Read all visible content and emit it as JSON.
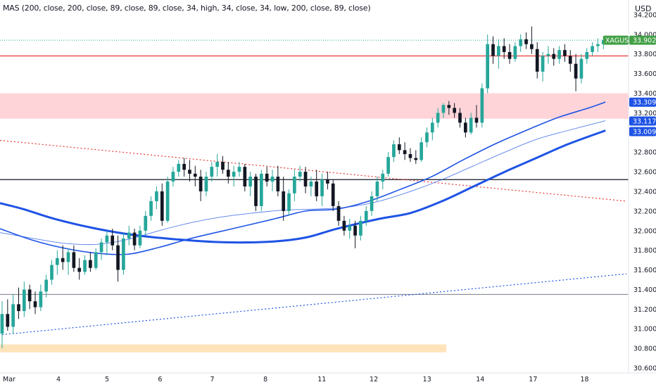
{
  "indicator_legend": "MAS (200, close, 200, close, 89, close, 89, close, 34, high, 34, close, 34, low, 200, close, 89, close)",
  "currency": "USD",
  "colors": {
    "up": "#26a69a",
    "down": "#131722",
    "resistance": "#e53935",
    "zone_red": "#ffcdd2",
    "zone_orange": "#ffe0b2",
    "ma": "#1e53e5",
    "badge_green": "#43a047",
    "badge_blue": "#1e53e5"
  },
  "chart_data": {
    "type": "candlestick",
    "symbol": "XAGUSD",
    "last_price": "33.902",
    "ylim": [
      30.55,
      34.35
    ],
    "y_ticks": [
      "34.200",
      "34.000",
      "33.800",
      "33.600",
      "33.400",
      "33.200",
      "33.000",
      "32.800",
      "32.600",
      "32.400",
      "32.200",
      "32.000",
      "31.800",
      "31.600",
      "31.400",
      "31.200",
      "31.000",
      "30.800",
      "30.600"
    ],
    "x_ticks": [
      "Mar",
      "4",
      "5",
      "6",
      "7",
      "8",
      "11",
      "12",
      "13",
      "14",
      "17",
      "18"
    ],
    "x_tick_values": [
      0,
      26.9,
      50.1,
      75.4,
      100.3,
      125.7,
      151.6,
      176.4,
      201.8,
      227.2,
      252.4,
      277.0
    ],
    "x_range": [
      -1,
      299
    ],
    "price_badges": [
      {
        "value": 33.309,
        "label": "33.309",
        "color": "blue"
      },
      {
        "value": 33.117,
        "label": "33.117",
        "color": "blue"
      },
      {
        "value": 33.009,
        "label": "33.009",
        "color": "blue"
      }
    ],
    "horizontal_lines": [
      {
        "name": "resistance-line",
        "value": 33.78,
        "color": "red"
      },
      {
        "name": "support-level-line",
        "value": 32.52,
        "color": "black"
      },
      {
        "name": "low-level-line",
        "value": 31.35,
        "color": "gray"
      }
    ],
    "zones": [
      {
        "name": "supply-zone",
        "from": 33.14,
        "to": 33.4,
        "x_from": -1,
        "x_to": 299,
        "color": "red"
      },
      {
        "name": "demand-zone",
        "from": 30.76,
        "to": 30.84,
        "x_from": -1,
        "x_to": 212,
        "color": "orange"
      }
    ],
    "trendlines": [
      {
        "name": "descending-trendline",
        "points": [
          [
            -1,
            32.92
          ],
          [
            298,
            32.3
          ]
        ],
        "color": "red",
        "style": "dotted"
      },
      {
        "name": "ascending-trendline",
        "points": [
          [
            0,
            30.94
          ],
          [
            298,
            31.56
          ]
        ],
        "color": "blue",
        "style": "dotted"
      }
    ],
    "moving_averages": [
      {
        "name": "ma-200-thick",
        "width": 3.0,
        "points": [
          [
            -1,
            32.28
          ],
          [
            10,
            32.22
          ],
          [
            25,
            32.12
          ],
          [
            45,
            32.02
          ],
          [
            65,
            31.95
          ],
          [
            90,
            31.9
          ],
          [
            110,
            31.88
          ],
          [
            130,
            31.89
          ],
          [
            145,
            31.93
          ],
          [
            160,
            32.02
          ],
          [
            180,
            32.12
          ],
          [
            195,
            32.18
          ],
          [
            210,
            32.3
          ],
          [
            225,
            32.45
          ],
          [
            240,
            32.6
          ],
          [
            255,
            32.74
          ],
          [
            270,
            32.88
          ],
          [
            288,
            33.02
          ]
        ]
      },
      {
        "name": "ma-89",
        "width": 1.6,
        "points": [
          [
            -1,
            32.02
          ],
          [
            15,
            31.9
          ],
          [
            30,
            31.82
          ],
          [
            45,
            31.77
          ],
          [
            60,
            31.76
          ],
          [
            75,
            31.83
          ],
          [
            90,
            31.92
          ],
          [
            110,
            32.02
          ],
          [
            130,
            32.12
          ],
          [
            145,
            32.2
          ],
          [
            160,
            32.22
          ],
          [
            175,
            32.3
          ],
          [
            190,
            32.42
          ],
          [
            205,
            32.55
          ],
          [
            220,
            32.72
          ],
          [
            235,
            32.88
          ],
          [
            250,
            33.02
          ],
          [
            265,
            33.15
          ],
          [
            280,
            33.25
          ],
          [
            288,
            33.31
          ]
        ]
      },
      {
        "name": "ma-89-thin",
        "width": 0.9,
        "points": [
          [
            -1,
            31.98
          ],
          [
            15,
            31.92
          ],
          [
            30,
            31.87
          ],
          [
            45,
            31.86
          ],
          [
            60,
            31.91
          ],
          [
            75,
            32.0
          ],
          [
            90,
            32.08
          ],
          [
            105,
            32.14
          ],
          [
            120,
            32.18
          ],
          [
            135,
            32.21
          ],
          [
            150,
            32.22
          ],
          [
            165,
            32.24
          ],
          [
            180,
            32.3
          ],
          [
            195,
            32.4
          ],
          [
            210,
            32.52
          ],
          [
            225,
            32.66
          ],
          [
            240,
            32.8
          ],
          [
            255,
            32.93
          ],
          [
            270,
            33.02
          ],
          [
            288,
            33.12
          ]
        ]
      }
    ],
    "candles": [
      {
        "o": 30.95,
        "h": 31.28,
        "l": 30.8,
        "c": 31.15
      },
      {
        "o": 31.15,
        "h": 31.3,
        "l": 30.98,
        "c": 31.02
      },
      {
        "o": 31.02,
        "h": 31.35,
        "l": 30.95,
        "c": 31.25
      },
      {
        "o": 31.25,
        "h": 31.42,
        "l": 31.1,
        "c": 31.18
      },
      {
        "o": 31.18,
        "h": 31.48,
        "l": 31.12,
        "c": 31.4
      },
      {
        "o": 31.4,
        "h": 31.45,
        "l": 31.2,
        "c": 31.28
      },
      {
        "o": 31.28,
        "h": 31.38,
        "l": 31.15,
        "c": 31.22
      },
      {
        "o": 31.22,
        "h": 31.45,
        "l": 31.18,
        "c": 31.38
      },
      {
        "o": 31.38,
        "h": 31.55,
        "l": 31.32,
        "c": 31.5
      },
      {
        "o": 31.5,
        "h": 31.7,
        "l": 31.45,
        "c": 31.65
      },
      {
        "o": 31.65,
        "h": 31.8,
        "l": 31.55,
        "c": 31.72
      },
      {
        "o": 31.72,
        "h": 31.85,
        "l": 31.6,
        "c": 31.68
      },
      {
        "o": 31.68,
        "h": 31.82,
        "l": 31.55,
        "c": 31.78
      },
      {
        "o": 31.78,
        "h": 31.85,
        "l": 31.58,
        "c": 31.62
      },
      {
        "o": 31.62,
        "h": 31.72,
        "l": 31.5,
        "c": 31.58
      },
      {
        "o": 31.58,
        "h": 31.75,
        "l": 31.55,
        "c": 31.7
      },
      {
        "o": 31.7,
        "h": 31.78,
        "l": 31.58,
        "c": 31.62
      },
      {
        "o": 31.62,
        "h": 31.82,
        "l": 31.6,
        "c": 31.78
      },
      {
        "o": 31.78,
        "h": 31.92,
        "l": 31.7,
        "c": 31.88
      },
      {
        "o": 31.88,
        "h": 32.0,
        "l": 31.75,
        "c": 31.95
      },
      {
        "o": 31.95,
        "h": 32.02,
        "l": 31.8,
        "c": 31.85
      },
      {
        "o": 31.85,
        "h": 31.95,
        "l": 31.48,
        "c": 31.6
      },
      {
        "o": 31.6,
        "h": 31.98,
        "l": 31.55,
        "c": 31.92
      },
      {
        "o": 31.92,
        "h": 32.05,
        "l": 31.85,
        "c": 31.98
      },
      {
        "o": 31.98,
        "h": 32.02,
        "l": 31.8,
        "c": 31.85
      },
      {
        "o": 31.85,
        "h": 32.05,
        "l": 31.82,
        "c": 32.0
      },
      {
        "o": 32.0,
        "h": 32.2,
        "l": 31.95,
        "c": 32.15
      },
      {
        "o": 32.15,
        "h": 32.35,
        "l": 32.1,
        "c": 32.3
      },
      {
        "o": 32.3,
        "h": 32.45,
        "l": 32.22,
        "c": 32.4
      },
      {
        "o": 32.4,
        "h": 32.48,
        "l": 32.05,
        "c": 32.1
      },
      {
        "o": 32.1,
        "h": 32.55,
        "l": 32.08,
        "c": 32.5
      },
      {
        "o": 32.5,
        "h": 32.65,
        "l": 32.45,
        "c": 32.6
      },
      {
        "o": 32.6,
        "h": 32.72,
        "l": 32.55,
        "c": 32.68
      },
      {
        "o": 32.68,
        "h": 32.74,
        "l": 32.55,
        "c": 32.62
      },
      {
        "o": 32.62,
        "h": 32.72,
        "l": 32.5,
        "c": 32.58
      },
      {
        "o": 32.58,
        "h": 32.66,
        "l": 32.45,
        "c": 32.55
      },
      {
        "o": 32.55,
        "h": 32.62,
        "l": 32.3,
        "c": 32.4
      },
      {
        "o": 32.4,
        "h": 32.6,
        "l": 32.35,
        "c": 32.55
      },
      {
        "o": 32.55,
        "h": 32.7,
        "l": 32.5,
        "c": 32.65
      },
      {
        "o": 32.65,
        "h": 32.78,
        "l": 32.55,
        "c": 32.7
      },
      {
        "o": 32.7,
        "h": 32.76,
        "l": 32.58,
        "c": 32.62
      },
      {
        "o": 32.62,
        "h": 32.7,
        "l": 32.48,
        "c": 32.55
      },
      {
        "o": 32.55,
        "h": 32.66,
        "l": 32.45,
        "c": 32.6
      },
      {
        "o": 32.6,
        "h": 32.7,
        "l": 32.55,
        "c": 32.65
      },
      {
        "o": 32.65,
        "h": 32.68,
        "l": 32.4,
        "c": 32.45
      },
      {
        "o": 32.45,
        "h": 32.6,
        "l": 32.35,
        "c": 32.55
      },
      {
        "o": 32.55,
        "h": 32.58,
        "l": 32.2,
        "c": 32.25
      },
      {
        "o": 32.25,
        "h": 32.62,
        "l": 32.2,
        "c": 32.58
      },
      {
        "o": 32.58,
        "h": 32.65,
        "l": 32.45,
        "c": 32.5
      },
      {
        "o": 32.5,
        "h": 32.62,
        "l": 32.4,
        "c": 32.55
      },
      {
        "o": 32.55,
        "h": 32.66,
        "l": 32.35,
        "c": 32.4
      },
      {
        "o": 32.4,
        "h": 32.55,
        "l": 32.1,
        "c": 32.2
      },
      {
        "o": 32.2,
        "h": 32.42,
        "l": 32.15,
        "c": 32.38
      },
      {
        "o": 32.38,
        "h": 32.62,
        "l": 32.3,
        "c": 32.55
      },
      {
        "o": 32.55,
        "h": 32.66,
        "l": 32.5,
        "c": 32.6
      },
      {
        "o": 32.6,
        "h": 32.65,
        "l": 32.38,
        "c": 32.45
      },
      {
        "o": 32.45,
        "h": 32.55,
        "l": 32.35,
        "c": 32.5
      },
      {
        "o": 32.5,
        "h": 32.62,
        "l": 32.3,
        "c": 32.35
      },
      {
        "o": 32.35,
        "h": 32.58,
        "l": 32.25,
        "c": 32.52
      },
      {
        "o": 32.52,
        "h": 32.6,
        "l": 32.42,
        "c": 32.48
      },
      {
        "o": 32.48,
        "h": 32.52,
        "l": 32.2,
        "c": 32.25
      },
      {
        "o": 32.25,
        "h": 32.3,
        "l": 32.05,
        "c": 32.1
      },
      {
        "o": 32.1,
        "h": 32.15,
        "l": 31.95,
        "c": 32.0
      },
      {
        "o": 32.0,
        "h": 32.12,
        "l": 31.92,
        "c": 32.05
      },
      {
        "o": 32.05,
        "h": 32.1,
        "l": 31.82,
        "c": 31.95
      },
      {
        "o": 31.95,
        "h": 32.15,
        "l": 31.9,
        "c": 32.1
      },
      {
        "o": 32.1,
        "h": 32.25,
        "l": 32.05,
        "c": 32.2
      },
      {
        "o": 32.2,
        "h": 32.4,
        "l": 32.15,
        "c": 32.35
      },
      {
        "o": 32.35,
        "h": 32.55,
        "l": 32.3,
        "c": 32.5
      },
      {
        "o": 32.5,
        "h": 32.62,
        "l": 32.42,
        "c": 32.58
      },
      {
        "o": 32.58,
        "h": 32.8,
        "l": 32.55,
        "c": 32.75
      },
      {
        "o": 32.75,
        "h": 32.92,
        "l": 32.7,
        "c": 32.88
      },
      {
        "o": 32.88,
        "h": 32.95,
        "l": 32.78,
        "c": 32.82
      },
      {
        "o": 32.82,
        "h": 32.9,
        "l": 32.72,
        "c": 32.78
      },
      {
        "o": 32.78,
        "h": 32.84,
        "l": 32.7,
        "c": 32.74
      },
      {
        "o": 32.74,
        "h": 32.82,
        "l": 32.68,
        "c": 32.72
      },
      {
        "o": 32.72,
        "h": 32.95,
        "l": 32.7,
        "c": 32.9
      },
      {
        "o": 32.9,
        "h": 33.05,
        "l": 32.85,
        "c": 33.0
      },
      {
        "o": 33.0,
        "h": 33.15,
        "l": 32.92,
        "c": 33.1
      },
      {
        "o": 33.1,
        "h": 33.25,
        "l": 33.05,
        "c": 33.2
      },
      {
        "o": 33.2,
        "h": 33.3,
        "l": 33.15,
        "c": 33.28
      },
      {
        "o": 33.28,
        "h": 33.32,
        "l": 33.18,
        "c": 33.25
      },
      {
        "o": 33.25,
        "h": 33.3,
        "l": 33.15,
        "c": 33.2
      },
      {
        "o": 33.2,
        "h": 33.25,
        "l": 33.05,
        "c": 33.1
      },
      {
        "o": 33.1,
        "h": 33.15,
        "l": 32.95,
        "c": 33.0
      },
      {
        "o": 33.0,
        "h": 33.2,
        "l": 32.98,
        "c": 33.15
      },
      {
        "o": 33.15,
        "h": 33.28,
        "l": 33.05,
        "c": 33.1
      },
      {
        "o": 33.1,
        "h": 33.5,
        "l": 33.05,
        "c": 33.45
      },
      {
        "o": 33.45,
        "h": 34.0,
        "l": 33.4,
        "c": 33.9
      },
      {
        "o": 33.9,
        "h": 33.98,
        "l": 33.7,
        "c": 33.78
      },
      {
        "o": 33.78,
        "h": 33.95,
        "l": 33.65,
        "c": 33.88
      },
      {
        "o": 33.88,
        "h": 33.96,
        "l": 33.75,
        "c": 33.82
      },
      {
        "o": 33.82,
        "h": 33.9,
        "l": 33.7,
        "c": 33.75
      },
      {
        "o": 33.75,
        "h": 33.92,
        "l": 33.72,
        "c": 33.88
      },
      {
        "o": 33.88,
        "h": 34.0,
        "l": 33.82,
        "c": 33.95
      },
      {
        "o": 33.95,
        "h": 34.02,
        "l": 33.85,
        "c": 33.9
      },
      {
        "o": 33.9,
        "h": 34.08,
        "l": 33.8,
        "c": 33.85
      },
      {
        "o": 33.85,
        "h": 33.92,
        "l": 33.55,
        "c": 33.62
      },
      {
        "o": 33.62,
        "h": 33.82,
        "l": 33.52,
        "c": 33.78
      },
      {
        "o": 33.78,
        "h": 33.88,
        "l": 33.7,
        "c": 33.8
      },
      {
        "o": 33.8,
        "h": 33.86,
        "l": 33.68,
        "c": 33.75
      },
      {
        "o": 33.75,
        "h": 33.88,
        "l": 33.7,
        "c": 33.84
      },
      {
        "o": 33.84,
        "h": 33.9,
        "l": 33.72,
        "c": 33.78
      },
      {
        "o": 33.78,
        "h": 33.84,
        "l": 33.62,
        "c": 33.7
      },
      {
        "o": 33.7,
        "h": 33.8,
        "l": 33.42,
        "c": 33.55
      },
      {
        "o": 33.55,
        "h": 33.8,
        "l": 33.5,
        "c": 33.75
      },
      {
        "o": 33.75,
        "h": 33.86,
        "l": 33.7,
        "c": 33.82
      },
      {
        "o": 33.82,
        "h": 33.92,
        "l": 33.78,
        "c": 33.88
      },
      {
        "o": 33.88,
        "h": 33.96,
        "l": 33.82,
        "c": 33.9
      },
      {
        "o": 33.9,
        "h": 33.98,
        "l": 33.85,
        "c": 33.94
      }
    ]
  }
}
